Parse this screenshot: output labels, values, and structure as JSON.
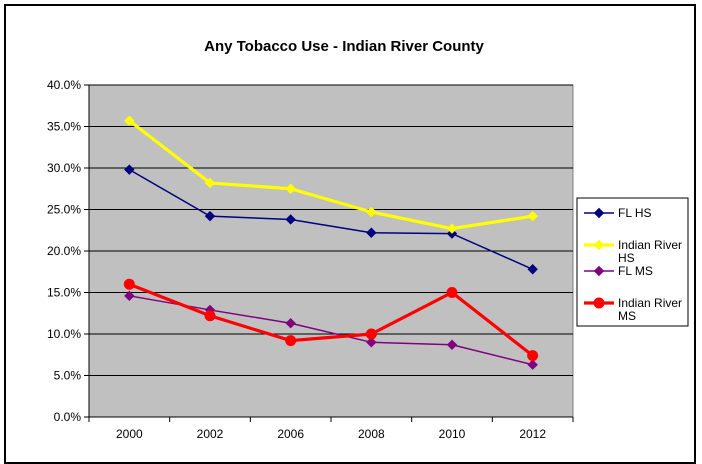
{
  "chart_data": {
    "type": "line",
    "title": "Any Tobacco Use - Indian River County",
    "xlabel": "",
    "ylabel": "",
    "categories": [
      "2000",
      "2002",
      "2006",
      "2008",
      "2010",
      "2012"
    ],
    "ylim": [
      0,
      40
    ],
    "yticks": [
      "0.0%",
      "5.0%",
      "10.0%",
      "15.0%",
      "20.0%",
      "25.0%",
      "30.0%",
      "35.0%",
      "40.0%"
    ],
    "grid": true,
    "plot_background": "#c0c0c0",
    "legend_position": "right",
    "series": [
      {
        "name": "FL HS",
        "legend_lines": [
          "FL HS"
        ],
        "color": "#000080",
        "marker": "diamond",
        "values": [
          29.8,
          24.2,
          23.8,
          22.2,
          22.1,
          17.8
        ]
      },
      {
        "name": "Indian River HS",
        "legend_lines": [
          "Indian River",
          "HS"
        ],
        "color": "#ffff00",
        "marker": "diamond",
        "values": [
          35.7,
          28.2,
          27.5,
          24.7,
          22.7,
          24.2
        ]
      },
      {
        "name": "FL MS",
        "legend_lines": [
          "FL MS"
        ],
        "color": "#800080",
        "marker": "diamond",
        "values": [
          14.6,
          12.9,
          11.3,
          9.0,
          8.7,
          6.3
        ]
      },
      {
        "name": "Indian River MS",
        "legend_lines": [
          "Indian River",
          "MS"
        ],
        "color": "#ff0000",
        "marker": "circle",
        "values": [
          16.0,
          12.2,
          9.2,
          10.0,
          15.0,
          7.4
        ]
      }
    ]
  }
}
